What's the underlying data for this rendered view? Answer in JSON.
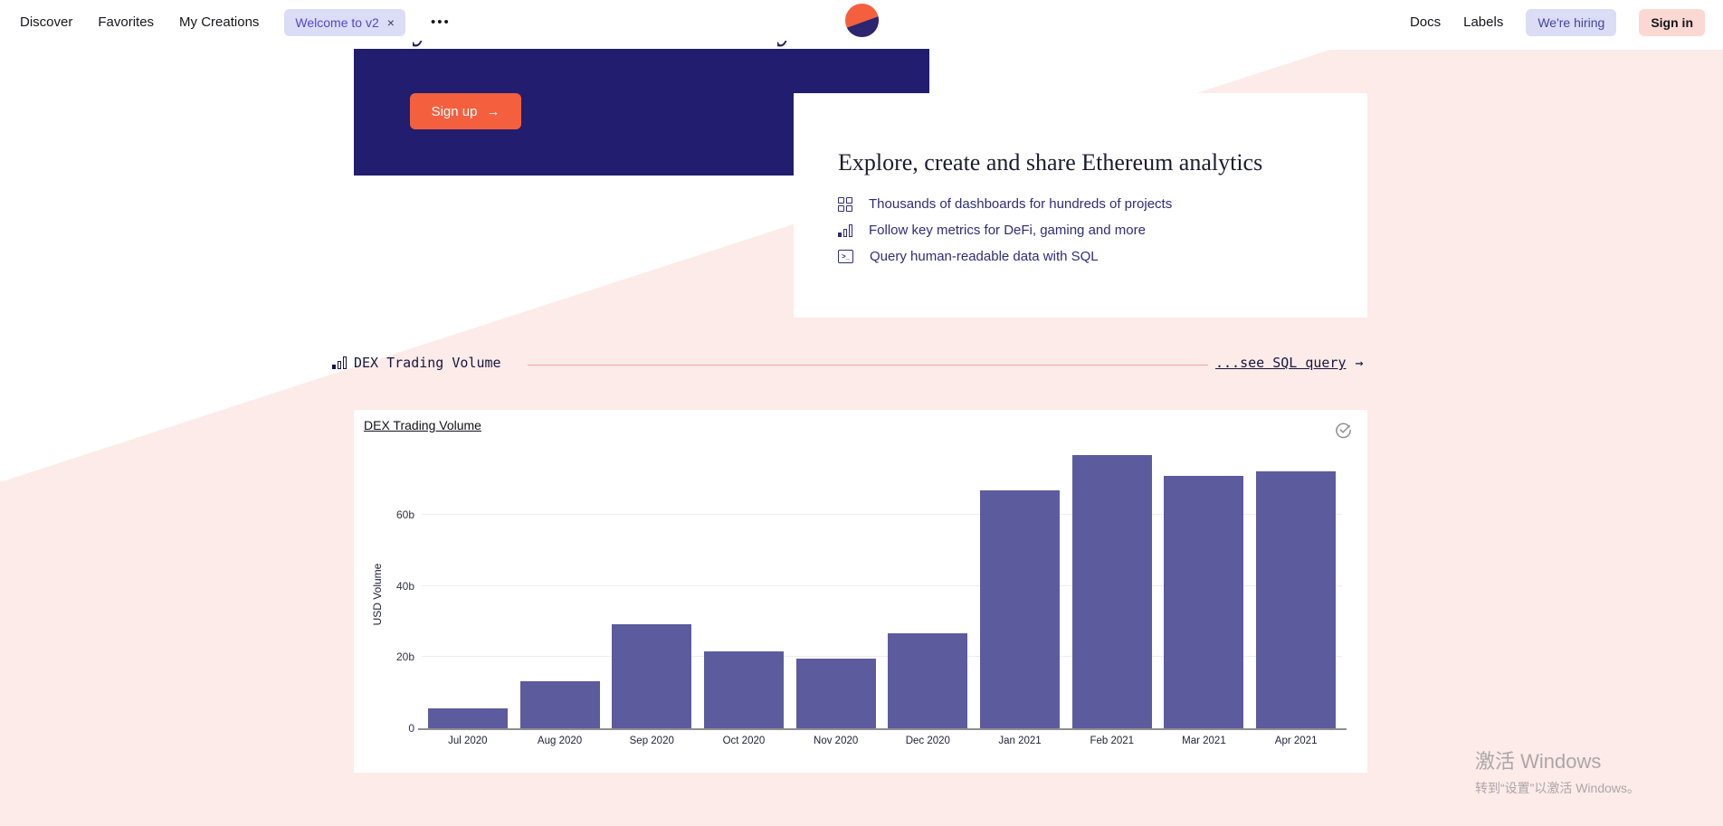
{
  "navbar": {
    "left_items": [
      {
        "label": "Discover"
      },
      {
        "label": "Favorites"
      },
      {
        "label": "My Creations"
      }
    ],
    "welcome_tag": {
      "label": "Welcome to v2",
      "close": "×"
    },
    "more_label": "•••",
    "right_items": [
      {
        "label": "Docs"
      },
      {
        "label": "Labels"
      }
    ],
    "hiring_badge": "We're hiring",
    "signin_label": "Sign in"
  },
  "hero": {
    "clipped_glyph": "y",
    "signup_label": "Sign up",
    "signup_arrow": "→"
  },
  "info_card": {
    "title": "Explore, create and share Ethereum analytics",
    "bullets": [
      {
        "icon": "dashboard-grid-icon",
        "text": "Thousands of dashboards for hundreds of projects"
      },
      {
        "icon": "bar-chart-icon",
        "text": "Follow key metrics for DeFi, gaming and more"
      },
      {
        "icon": "terminal-icon",
        "text": "Query human-readable data with SQL"
      }
    ]
  },
  "section_header": {
    "title": "DEX Trading Volume",
    "link_label": "...see SQL query",
    "link_arrow": "→"
  },
  "chart_card": {
    "title": "DEX Trading Volume"
  },
  "chart_data": {
    "type": "bar",
    "title": "DEX Trading Volume",
    "xlabel": "",
    "ylabel": "USD Volume",
    "categories": [
      "Jul 2020",
      "Aug 2020",
      "Sep 2020",
      "Oct 2020",
      "Nov 2020",
      "Dec 2020",
      "Jan 2021",
      "Feb 2021",
      "Mar 2021",
      "Apr 2021"
    ],
    "values": [
      5.6,
      13.2,
      29.3,
      21.6,
      19.6,
      26.7,
      66.7,
      76.6,
      70.8,
      72.1
    ],
    "unit": "billions USD",
    "ytick_labels": [
      "0",
      "20b",
      "40b",
      "60b"
    ],
    "ytick_values": [
      0,
      20,
      40,
      60
    ],
    "ylim": [
      0,
      80
    ],
    "grid": true,
    "legend_position": "none",
    "bar_color": "#5c5b9e"
  },
  "watermark": {
    "line1": "激活 Windows",
    "line2": "转到“设置”以激活 Windows。"
  },
  "colors": {
    "pink_background": "#fcebe8",
    "hero_navy": "#221d6e",
    "accent_orange": "#f4603e",
    "pill_lavender": "#dbdcf6",
    "pill_pink": "#fbd9d2",
    "bullet_navy": "#2e2c78",
    "bar_purple": "#5c5b9e",
    "divider_salmon": "#eba89c"
  }
}
